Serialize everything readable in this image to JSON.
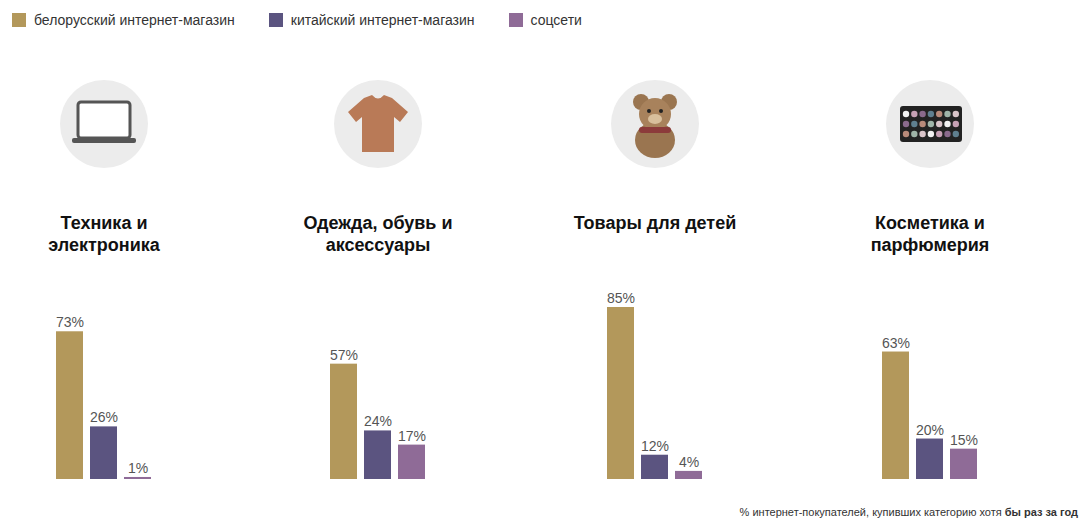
{
  "chart_data": {
    "type": "bar",
    "categories": [
      "Техника и электроника",
      "Одежда, обувь и аксессуары",
      "Товары для детей",
      "Косметика и парфюмерия"
    ],
    "series": [
      {
        "name": "белорусский интернет-магазин",
        "color": "#b3985b",
        "values": [
          73,
          57,
          85,
          63
        ],
        "value_labels": [
          "73%",
          "57%",
          "85%",
          "63%"
        ]
      },
      {
        "name": "китайский интернет-магазин",
        "color": "#5b5480",
        "values": [
          26,
          24,
          12,
          20
        ],
        "value_labels": [
          "26%",
          "24%",
          "12%",
          "20%"
        ]
      },
      {
        "name": "соцсети",
        "color": "#8f6b97",
        "values": [
          1,
          17,
          4,
          15
        ],
        "value_labels": [
          "1%",
          "17%",
          "4%",
          "15%"
        ]
      }
    ],
    "caption": "% интернет-покупателей, купивших категорию хотя бы раз за год",
    "legend": "top",
    "data_labels": true,
    "tick_labels": false
  }
}
